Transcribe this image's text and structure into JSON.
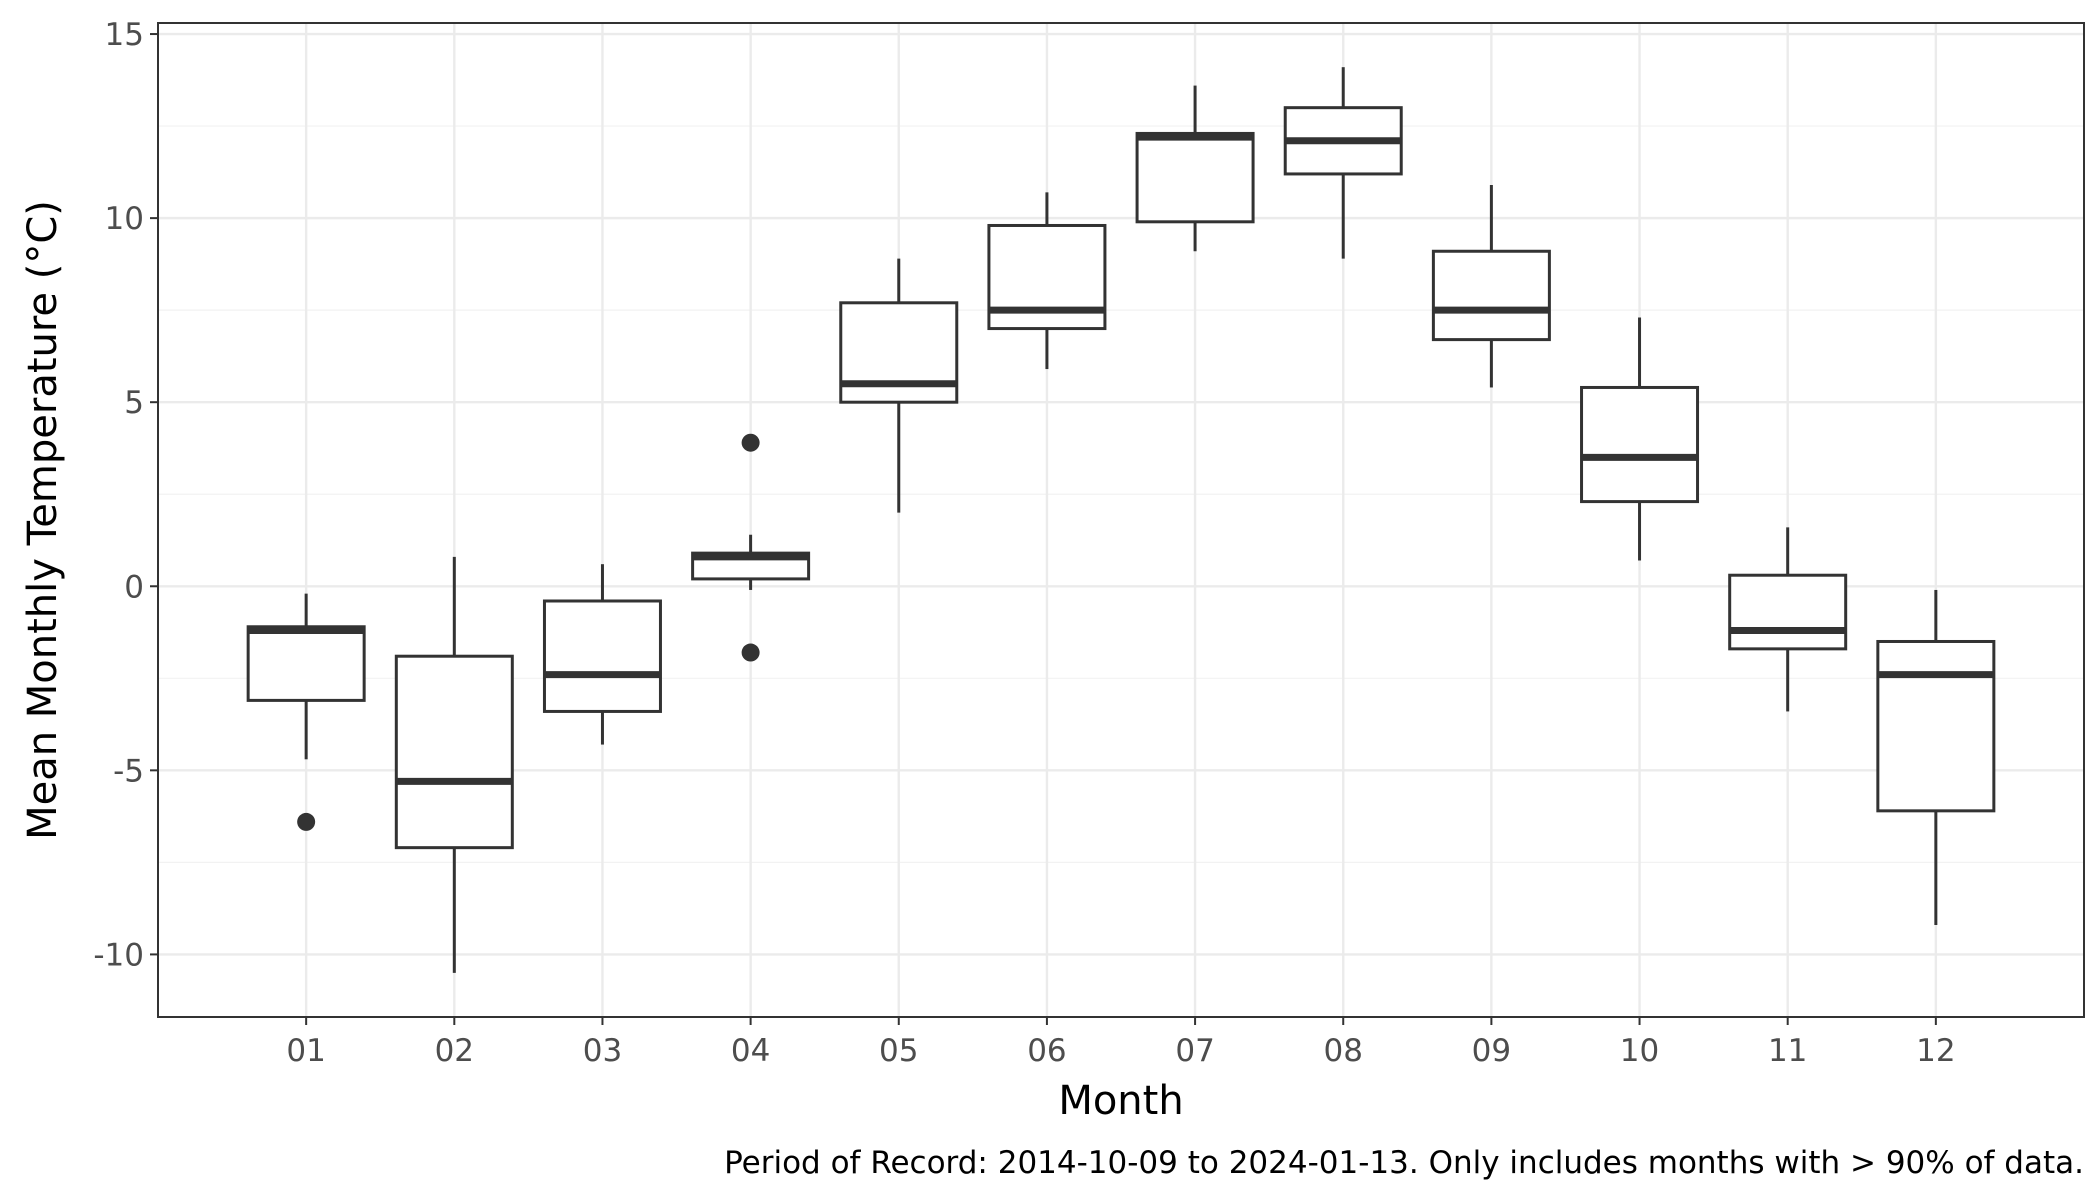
{
  "chart_data": {
    "type": "box",
    "xlabel": "Month",
    "ylabel": "Mean Monthly Temperature (°C)",
    "caption": "Period of Record: 2014-10-09 to 2024-01-13. Only includes months with > 90% of data.",
    "ylim": [
      -11.7,
      15.3
    ],
    "yticks": [
      -10,
      -5,
      0,
      5,
      10,
      15
    ],
    "ytick_labels": [
      "-10",
      "-5",
      "0",
      "5",
      "10",
      "15"
    ],
    "grid": true,
    "categories": [
      "01",
      "02",
      "03",
      "04",
      "05",
      "06",
      "07",
      "08",
      "09",
      "10",
      "11",
      "12"
    ],
    "boxes": [
      {
        "month": "01",
        "whisker_low": -4.7,
        "q1": -3.1,
        "median": -1.2,
        "q3": -1.1,
        "whisker_high": -0.2,
        "outliers": [
          -6.4
        ]
      },
      {
        "month": "02",
        "whisker_low": -10.5,
        "q1": -7.1,
        "median": -5.3,
        "q3": -1.9,
        "whisker_high": 0.8,
        "outliers": []
      },
      {
        "month": "03",
        "whisker_low": -4.3,
        "q1": -3.4,
        "median": -2.4,
        "q3": -0.4,
        "whisker_high": 0.6,
        "outliers": []
      },
      {
        "month": "04",
        "whisker_low": -0.1,
        "q1": 0.2,
        "median": 0.8,
        "q3": 0.9,
        "whisker_high": 1.4,
        "outliers": [
          3.9,
          -1.8
        ]
      },
      {
        "month": "05",
        "whisker_low": 2.0,
        "q1": 5.0,
        "median": 5.5,
        "q3": 7.7,
        "whisker_high": 8.9,
        "outliers": []
      },
      {
        "month": "06",
        "whisker_low": 5.9,
        "q1": 7.0,
        "median": 7.5,
        "q3": 9.8,
        "whisker_high": 10.7,
        "outliers": []
      },
      {
        "month": "07",
        "whisker_low": 9.1,
        "q1": 9.9,
        "median": 12.2,
        "q3": 12.3,
        "whisker_high": 13.6,
        "outliers": []
      },
      {
        "month": "08",
        "whisker_low": 8.9,
        "q1": 11.2,
        "median": 12.1,
        "q3": 13.0,
        "whisker_high": 14.1,
        "outliers": []
      },
      {
        "month": "09",
        "whisker_low": 5.4,
        "q1": 6.7,
        "median": 7.5,
        "q3": 9.1,
        "whisker_high": 10.9,
        "outliers": []
      },
      {
        "month": "10",
        "whisker_low": 0.7,
        "q1": 2.3,
        "median": 3.5,
        "q3": 5.4,
        "whisker_high": 7.3,
        "outliers": []
      },
      {
        "month": "11",
        "whisker_low": -3.4,
        "q1": -1.7,
        "median": -1.2,
        "q3": 0.3,
        "whisker_high": 1.6,
        "outliers": []
      },
      {
        "month": "12",
        "whisker_low": -9.2,
        "q1": -6.1,
        "median": -2.4,
        "q3": -1.5,
        "whisker_high": -0.1,
        "outliers": []
      }
    ],
    "colors": {
      "box_stroke": "#333333",
      "box_fill": "#ffffff",
      "grid": "#ebebeb"
    }
  }
}
